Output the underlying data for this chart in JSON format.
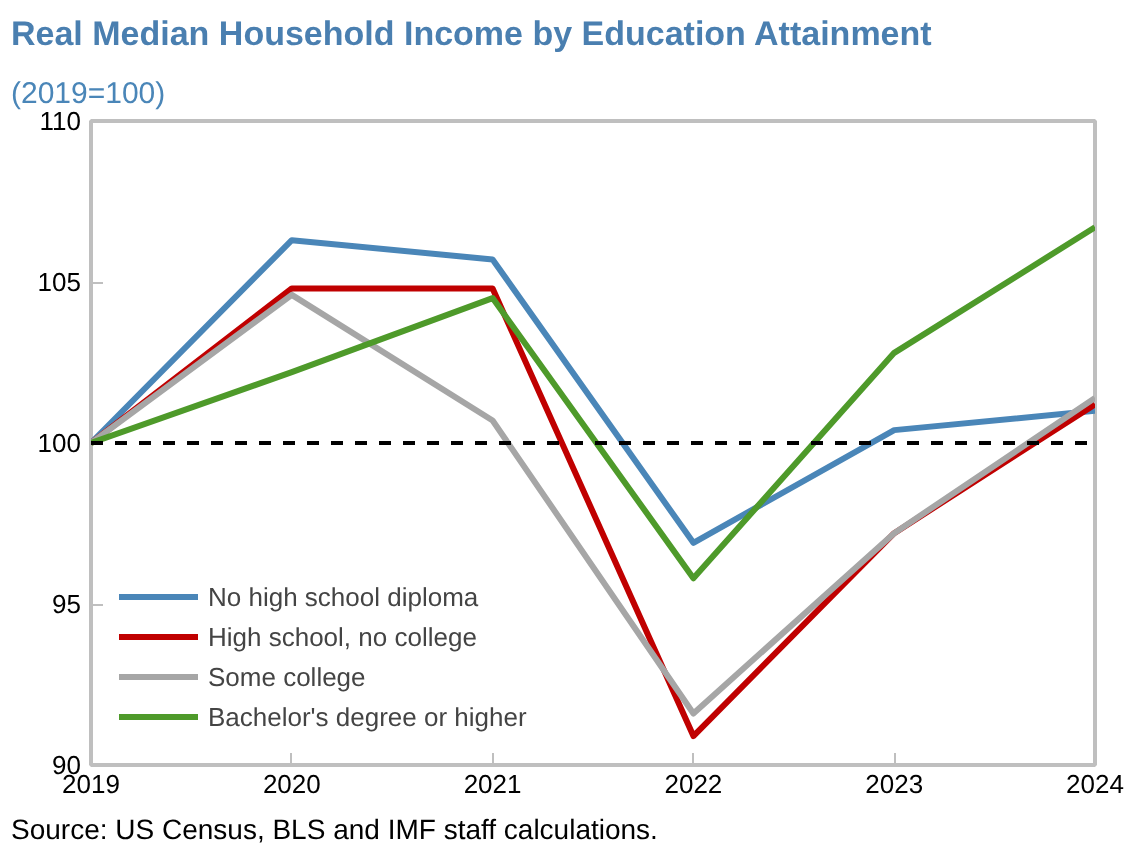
{
  "chart_data": {
    "type": "line",
    "title": "Real Median Household Income by Education Attainment",
    "subtitle": "(2019=100)",
    "x": [
      2019,
      2020,
      2021,
      2022,
      2023,
      2024
    ],
    "series": [
      {
        "name": "No high school diploma",
        "color": "#4a86b8",
        "values": [
          100,
          106.3,
          105.7,
          96.9,
          100.4,
          101.0
        ]
      },
      {
        "name": "High school, no college",
        "color": "#c00000",
        "values": [
          100,
          104.8,
          104.8,
          90.9,
          97.2,
          101.2
        ]
      },
      {
        "name": "Some college",
        "color": "#a6a6a6",
        "values": [
          100,
          104.6,
          100.7,
          91.6,
          97.2,
          101.4
        ]
      },
      {
        "name": "Bachelor's degree or higher",
        "color": "#4e9a2a",
        "values": [
          100,
          102.2,
          104.5,
          95.8,
          102.8,
          106.7
        ]
      }
    ],
    "xlim": [
      2019,
      2024
    ],
    "xticks": [
      2019,
      2020,
      2021,
      2022,
      2023,
      2024
    ],
    "ylim": [
      90,
      110
    ],
    "yticks": [
      90,
      95,
      100,
      105,
      110
    ],
    "ref_lines": [
      {
        "axis": "y",
        "value": 100,
        "color": "#000000",
        "line_style": "dashed"
      }
    ],
    "annotations": [
      "Source: US Census, BLS and IMF staff calculations."
    ],
    "legend": "bottom left",
    "grid": false,
    "marker": "none",
    "line_style": "solid"
  }
}
